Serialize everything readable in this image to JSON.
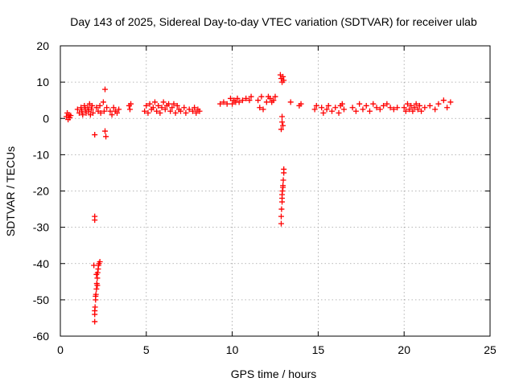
{
  "chart_data": {
    "type": "scatter",
    "title": "Day 143 of 2025, Sidereal Day-to-day VTEC variation (SDTVAR) for receiver ulab",
    "xlabel": "GPS time / hours",
    "ylabel": "SDTVAR / TECUs",
    "xlim": [
      0,
      25
    ],
    "ylim": [
      -60,
      20
    ],
    "xticks": [
      0,
      5,
      10,
      15,
      20,
      25
    ],
    "yticks": [
      -60,
      -50,
      -40,
      -30,
      -20,
      -10,
      0,
      10,
      20
    ],
    "xtick_labels": [
      "0",
      "5",
      "10",
      "15",
      "20",
      "25"
    ],
    "ytick_labels": [
      "-60",
      "-50",
      "-40",
      "-30",
      "-20",
      "-10",
      "0",
      "10",
      "20"
    ],
    "grid": true,
    "marker": "+",
    "color": "#ff0000",
    "series": [
      {
        "name": "SDTVAR",
        "points": [
          [
            0.35,
            0.5
          ],
          [
            0.4,
            1.5
          ],
          [
            0.45,
            -0.3
          ],
          [
            0.5,
            1.0
          ],
          [
            0.55,
            0.2
          ],
          [
            0.6,
            0.8
          ],
          [
            1.0,
            2.5
          ],
          [
            1.1,
            1.5
          ],
          [
            1.2,
            3.0
          ],
          [
            1.25,
            2.0
          ],
          [
            1.3,
            1.0
          ],
          [
            1.4,
            3.5
          ],
          [
            1.45,
            2.5
          ],
          [
            1.5,
            1.5
          ],
          [
            1.6,
            3.0
          ],
          [
            1.65,
            2.0
          ],
          [
            1.7,
            4.0
          ],
          [
            1.75,
            1.0
          ],
          [
            1.8,
            2.5
          ],
          [
            1.85,
            3.5
          ],
          [
            1.9,
            1.5
          ],
          [
            2.0,
            -4.5
          ],
          [
            2.0,
            -27.0
          ],
          [
            2.0,
            -28.0
          ],
          [
            2.1,
            3.0
          ],
          [
            2.2,
            2.0
          ],
          [
            2.3,
            3.5
          ],
          [
            2.35,
            1.5
          ],
          [
            2.5,
            4.5
          ],
          [
            2.55,
            2.0
          ],
          [
            2.6,
            8.0
          ],
          [
            2.6,
            -3.5
          ],
          [
            2.65,
            -5.0
          ],
          [
            2.7,
            3.0
          ],
          [
            2.0,
            -56.0
          ],
          [
            2.0,
            -54.0
          ],
          [
            2.02,
            -52.0
          ],
          [
            2.05,
            -50.0
          ],
          [
            2.07,
            -48.5
          ],
          [
            2.1,
            -47.0
          ],
          [
            2.12,
            -45.5
          ],
          [
            2.15,
            -44.0
          ],
          [
            2.17,
            -42.5
          ],
          [
            2.2,
            -41.5
          ],
          [
            2.22,
            -40.5
          ],
          [
            2.25,
            -40.0
          ],
          [
            2.3,
            -39.5
          ],
          [
            1.95,
            -40.5
          ],
          [
            2.05,
            -49.0
          ],
          [
            2.15,
            -46.0
          ],
          [
            2.0,
            -53.0
          ],
          [
            2.1,
            -43.0
          ],
          [
            2.9,
            2.0
          ],
          [
            3.0,
            1.0
          ],
          [
            3.1,
            3.0
          ],
          [
            3.2,
            2.0
          ],
          [
            3.3,
            1.5
          ],
          [
            3.4,
            2.5
          ],
          [
            4.0,
            3.5
          ],
          [
            4.05,
            2.5
          ],
          [
            4.1,
            4.0
          ],
          [
            4.9,
            2.0
          ],
          [
            5.0,
            3.5
          ],
          [
            5.1,
            1.5
          ],
          [
            5.2,
            4.0
          ],
          [
            5.3,
            2.5
          ],
          [
            5.4,
            3.0
          ],
          [
            5.5,
            4.5
          ],
          [
            5.6,
            2.0
          ],
          [
            5.7,
            3.5
          ],
          [
            5.8,
            1.5
          ],
          [
            5.9,
            3.0
          ],
          [
            6.0,
            4.5
          ],
          [
            6.1,
            2.5
          ],
          [
            6.2,
            3.5
          ],
          [
            6.3,
            4.0
          ],
          [
            6.4,
            2.0
          ],
          [
            6.5,
            3.0
          ],
          [
            6.6,
            4.0
          ],
          [
            6.7,
            1.5
          ],
          [
            6.8,
            3.5
          ],
          [
            6.9,
            2.5
          ],
          [
            7.0,
            2.0
          ],
          [
            7.2,
            3.0
          ],
          [
            7.3,
            1.5
          ],
          [
            7.5,
            2.5
          ],
          [
            7.7,
            2.0
          ],
          [
            7.8,
            3.0
          ],
          [
            7.9,
            1.5
          ],
          [
            8.0,
            2.5
          ],
          [
            8.1,
            2.0
          ],
          [
            9.3,
            4.0
          ],
          [
            9.5,
            4.5
          ],
          [
            9.7,
            4.0
          ],
          [
            9.9,
            5.5
          ],
          [
            10.0,
            4.0
          ],
          [
            10.1,
            5.0
          ],
          [
            10.2,
            4.5
          ],
          [
            10.3,
            5.5
          ],
          [
            10.4,
            4.5
          ],
          [
            10.6,
            5.0
          ],
          [
            10.8,
            5.5
          ],
          [
            11.0,
            5.0
          ],
          [
            11.1,
            6.0
          ],
          [
            11.5,
            5.0
          ],
          [
            11.6,
            3.0
          ],
          [
            11.7,
            6.0
          ],
          [
            11.8,
            2.5
          ],
          [
            12.0,
            4.5
          ],
          [
            12.1,
            6.0
          ],
          [
            12.2,
            5.5
          ],
          [
            12.3,
            4.5
          ],
          [
            12.4,
            5.0
          ],
          [
            12.5,
            6.0
          ],
          [
            12.8,
            12.0
          ],
          [
            12.85,
            11.0
          ],
          [
            12.9,
            10.0
          ],
          [
            12.95,
            11.5
          ],
          [
            13.0,
            10.5
          ],
          [
            12.9,
            -1.0
          ],
          [
            12.95,
            -2.0
          ],
          [
            12.85,
            -3.0
          ],
          [
            12.9,
            0.5
          ],
          [
            12.85,
            -29.0
          ],
          [
            12.85,
            -27.0
          ],
          [
            12.87,
            -25.0
          ],
          [
            12.9,
            -23.0
          ],
          [
            12.9,
            -21.0
          ],
          [
            12.92,
            -20.0
          ],
          [
            12.95,
            -19.0
          ],
          [
            12.97,
            -17.0
          ],
          [
            13.0,
            -15.0
          ],
          [
            13.0,
            -14.0
          ],
          [
            12.9,
            -22.0
          ],
          [
            12.95,
            -18.5
          ],
          [
            13.4,
            4.5
          ],
          [
            13.9,
            3.5
          ],
          [
            14.0,
            4.0
          ],
          [
            14.8,
            2.5
          ],
          [
            14.9,
            3.5
          ],
          [
            15.2,
            3.0
          ],
          [
            15.3,
            1.5
          ],
          [
            15.5,
            2.5
          ],
          [
            15.6,
            3.5
          ],
          [
            15.8,
            2.0
          ],
          [
            16.0,
            3.0
          ],
          [
            16.2,
            1.5
          ],
          [
            16.3,
            3.5
          ],
          [
            16.4,
            4.0
          ],
          [
            16.5,
            2.5
          ],
          [
            17.0,
            3.0
          ],
          [
            17.2,
            2.0
          ],
          [
            17.4,
            4.0
          ],
          [
            17.6,
            2.5
          ],
          [
            17.8,
            3.5
          ],
          [
            18.0,
            2.0
          ],
          [
            18.2,
            4.0
          ],
          [
            18.4,
            3.0
          ],
          [
            18.6,
            2.5
          ],
          [
            18.8,
            3.5
          ],
          [
            19.0,
            4.0
          ],
          [
            19.2,
            3.0
          ],
          [
            19.4,
            2.5
          ],
          [
            19.6,
            3.0
          ],
          [
            20.0,
            3.0
          ],
          [
            20.1,
            2.0
          ],
          [
            20.2,
            4.0
          ],
          [
            20.3,
            2.5
          ],
          [
            20.4,
            3.5
          ],
          [
            20.5,
            2.0
          ],
          [
            20.6,
            3.0
          ],
          [
            20.7,
            4.0
          ],
          [
            20.8,
            2.5
          ],
          [
            20.9,
            3.5
          ],
          [
            21.0,
            2.0
          ],
          [
            21.2,
            3.0
          ],
          [
            21.5,
            3.5
          ],
          [
            21.8,
            2.5
          ],
          [
            22.0,
            4.0
          ],
          [
            22.3,
            5.0
          ],
          [
            22.5,
            3.0
          ],
          [
            22.7,
            4.5
          ]
        ]
      }
    ]
  }
}
